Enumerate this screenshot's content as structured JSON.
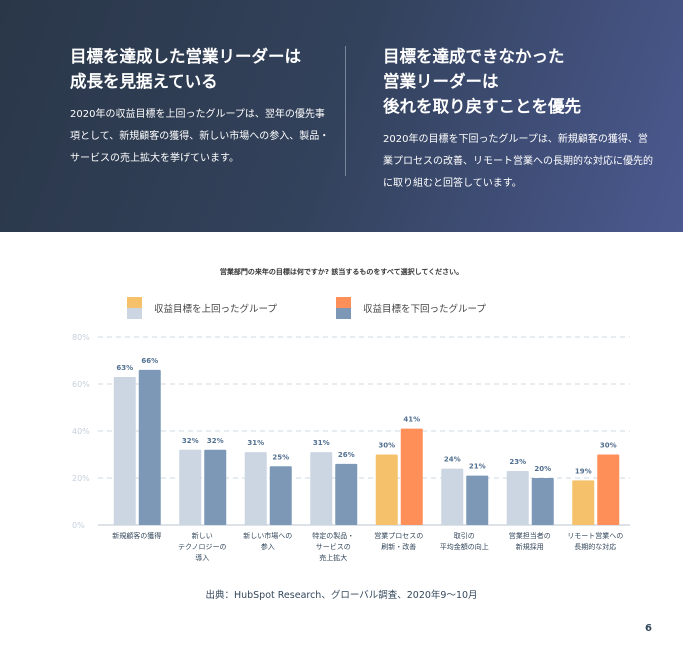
{
  "hero": {
    "left": {
      "title_lines": [
        "目標を達成した営業リーダーは",
        "成長を見据えている"
      ],
      "body": "2020年の収益目標を上回ったグループは、翌年の優先事項として、新規顧客の獲得、新しい市場への参入、製品・サービスの売上拡大を挙げています。"
    },
    "right": {
      "title_lines": [
        "目標を達成できなかった",
        "営業リーダーは",
        "後れを取り戻すことを優先"
      ],
      "body": "2020年の目標を下回ったグループは、新規顧客の獲得、営業プロセスの改善、リモート営業への長期的な対応に優先的に取り組むと回答しています。"
    }
  },
  "chart_data": {
    "type": "bar",
    "title": "営業部門の来年の目標は何ですか? 該当するものをすべて選択してください。",
    "categories": [
      [
        "新規顧客の獲得"
      ],
      [
        "新しい",
        "テクノロジーの",
        "導入"
      ],
      [
        "新しい市場への",
        "参入"
      ],
      [
        "特定の製品・",
        "サービスの",
        "売上拡大"
      ],
      [
        "営業プロセスの",
        "刷新・改善"
      ],
      [
        "取引の",
        "平均金額の向上"
      ],
      [
        "営業担当者の",
        "新規採用"
      ],
      [
        "リモート営業への",
        "長期的な対応"
      ]
    ],
    "series": [
      {
        "name": "収益目標を上回ったグループ",
        "values": [
          63,
          32,
          31,
          31,
          30,
          24,
          23,
          19
        ],
        "color": "#cbd6e2",
        "highlight_color": "#f5c26b"
      },
      {
        "name": "収益目標を下回ったグループ",
        "values": [
          66,
          32,
          25,
          26,
          41,
          21,
          20,
          30
        ],
        "color": "#7c98b6",
        "highlight_color": "#ff8f59"
      }
    ],
    "highlighted_categories": [
      4,
      7
    ],
    "yticks": [
      "0%",
      "20%",
      "40%",
      "60%",
      "80%"
    ],
    "ylim": [
      0,
      80
    ],
    "grid": true,
    "legend_position": "top"
  },
  "source": "出典：HubSpot Research、グローバル調査、2020年9〜10月",
  "page_number": "6"
}
